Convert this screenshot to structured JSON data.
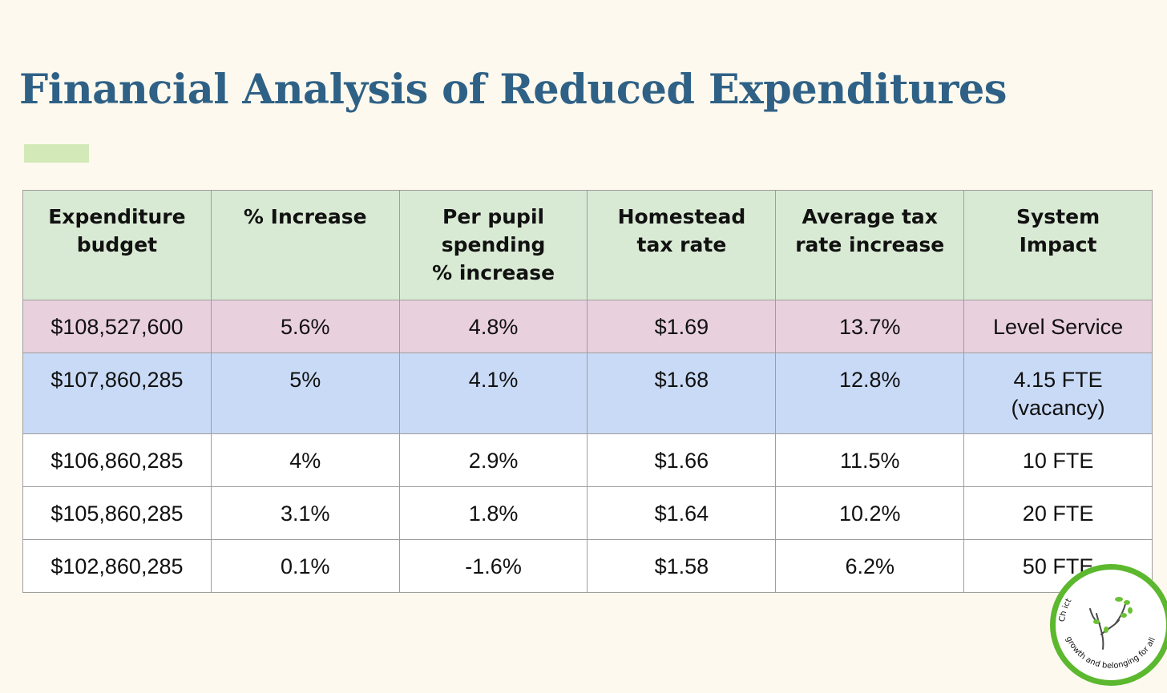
{
  "slide": {
    "title": "Financial Analysis of Reduced Expenditures",
    "accent_color": "#d3e9b8",
    "title_color": "#2f6186"
  },
  "table": {
    "headers": [
      [
        "Expenditure",
        "budget"
      ],
      [
        "% Increase"
      ],
      [
        "Per pupil",
        "spending",
        "% increase"
      ],
      [
        "Homestead",
        "tax rate"
      ],
      [
        "Average tax",
        "rate increase"
      ],
      [
        "System",
        "Impact"
      ]
    ],
    "rows": [
      {
        "style": "pink",
        "color": "#e9d0dd",
        "cells": [
          [
            "$108,527,600"
          ],
          [
            "5.6%"
          ],
          [
            "4.8%"
          ],
          [
            "$1.69"
          ],
          [
            "13.7%"
          ],
          [
            "Level Service"
          ]
        ]
      },
      {
        "style": "blue",
        "color": "#c9daf6",
        "cells": [
          [
            "$107,860,285"
          ],
          [
            "5%"
          ],
          [
            "4.1%"
          ],
          [
            "$1.68"
          ],
          [
            "12.8%"
          ],
          [
            "4.15 FTE",
            "(vacancy)"
          ]
        ]
      },
      {
        "style": "white",
        "color": "#ffffff",
        "cells": [
          [
            "$106,860,285"
          ],
          [
            "4%"
          ],
          [
            "2.9%"
          ],
          [
            "$1.66"
          ],
          [
            "11.5%"
          ],
          [
            "10 FTE"
          ]
        ]
      },
      {
        "style": "white",
        "color": "#ffffff",
        "cells": [
          [
            "$105,860,285"
          ],
          [
            "3.1%"
          ],
          [
            "1.8%"
          ],
          [
            "$1.64"
          ],
          [
            "10.2%"
          ],
          [
            "20 FTE"
          ]
        ]
      },
      {
        "style": "white",
        "color": "#ffffff",
        "cells": [
          [
            "$102,860,285"
          ],
          [
            "0.1%"
          ],
          [
            "-1.6%"
          ],
          [
            "$1.58"
          ],
          [
            "6.2%"
          ],
          [
            "50 FTE"
          ]
        ]
      }
    ]
  },
  "logo": {
    "icon": "tree-seal-icon",
    "ring_color": "#5cb82e",
    "text_top": "Ch                    ict",
    "text_bottom": "growth and belonging for all"
  }
}
